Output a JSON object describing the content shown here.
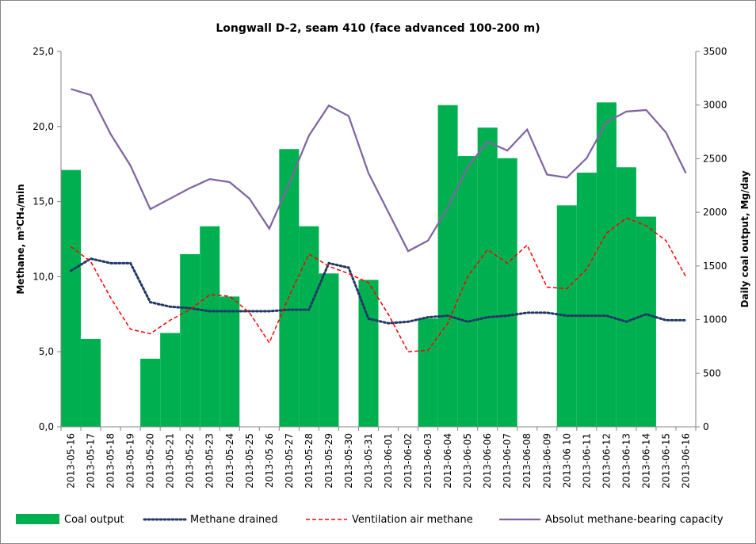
{
  "chart_data": {
    "type": "bar+line",
    "title": "Longwall D-2, seam 410 (face advanced 100-200 m)",
    "ylabel_left": "Methane, m³CH₄/min",
    "ylabel_right": "Daily coal output, Mg/day",
    "ylim_left": [
      0,
      25
    ],
    "ylim_right": [
      0,
      3500
    ],
    "yticks_left": [
      "0,0",
      "5,0",
      "10,0",
      "15,0",
      "20,0",
      "25,0"
    ],
    "yticks_right": [
      "0",
      "500",
      "1000",
      "1500",
      "2000",
      "2500",
      "3000",
      "3500"
    ],
    "grid": false,
    "legend_position": "bottom",
    "categories": [
      "2013-05-16",
      "2013-05-17",
      "2013-05-18",
      "2013-05-19",
      "2013-05-20",
      "2013-05-21",
      "2013-05-22",
      "2013-05-23",
      "2013-05-24",
      "2013-05-25",
      "2013-05 26",
      "2013-05-27",
      "2013-05-28",
      "2013-05-29",
      "2013-05-30",
      "2013-05-31",
      "2013-06-01",
      "2013-06-02",
      "2013-06-03",
      "2013-06-04",
      "2013-06-05",
      "2013-06-06",
      "2013-06-07",
      "2013-06-08",
      "2013-06-09",
      "2013-06 10",
      "2013-06-11",
      "2013-06-12",
      "2013-06-13",
      "2013-06-14",
      "2013-06-15",
      "2013-06-16"
    ],
    "series": [
      {
        "name": "Coal output",
        "type": "bar",
        "axis": "right",
        "color": "#00b050",
        "values": [
          2395,
          820,
          0,
          0,
          635,
          875,
          1610,
          1870,
          1215,
          0,
          0,
          2590,
          1870,
          1430,
          0,
          1370,
          0,
          0,
          1010,
          3000,
          2525,
          2790,
          2505,
          0,
          0,
          2065,
          2370,
          3025,
          2420,
          1960,
          0,
          0
        ]
      },
      {
        "name": "Methane drained",
        "type": "line",
        "style": "dotted",
        "axis": "left",
        "color": "#1f3864",
        "values": [
          10.4,
          11.2,
          10.9,
          10.9,
          8.3,
          8.0,
          7.9,
          7.7,
          7.7,
          7.7,
          7.7,
          7.8,
          7.8,
          10.9,
          10.6,
          7.2,
          6.9,
          7.0,
          7.3,
          7.4,
          7.0,
          7.3,
          7.4,
          7.6,
          7.6,
          7.4,
          7.4,
          7.4,
          7.0,
          7.5,
          7.1,
          7.1
        ]
      },
      {
        "name": "Ventilation air methane",
        "type": "line",
        "style": "dashed",
        "axis": "left",
        "color": "#ff0000",
        "values": [
          12.0,
          11.0,
          8.6,
          6.5,
          6.2,
          7.1,
          7.8,
          8.8,
          8.7,
          7.6,
          5.6,
          8.7,
          11.5,
          10.7,
          10.2,
          9.6,
          7.5,
          5.0,
          5.1,
          6.9,
          10.0,
          11.8,
          10.9,
          12.1,
          9.3,
          9.2,
          10.5,
          12.9,
          13.9,
          13.4,
          12.4,
          10.0
        ]
      },
      {
        "name": "Absolut methane-bearing capacity",
        "type": "line",
        "style": "solid",
        "axis": "left",
        "color": "#8064a2",
        "values": [
          22.5,
          22.1,
          19.5,
          17.4,
          14.5,
          15.2,
          15.9,
          16.5,
          16.3,
          15.2,
          13.2,
          16.2,
          19.4,
          21.4,
          20.7,
          16.9,
          14.3,
          11.7,
          12.4,
          14.6,
          17.3,
          19.0,
          18.4,
          19.8,
          16.8,
          16.6,
          17.9,
          20.3,
          21.0,
          21.1,
          19.6,
          16.9
        ]
      }
    ]
  }
}
